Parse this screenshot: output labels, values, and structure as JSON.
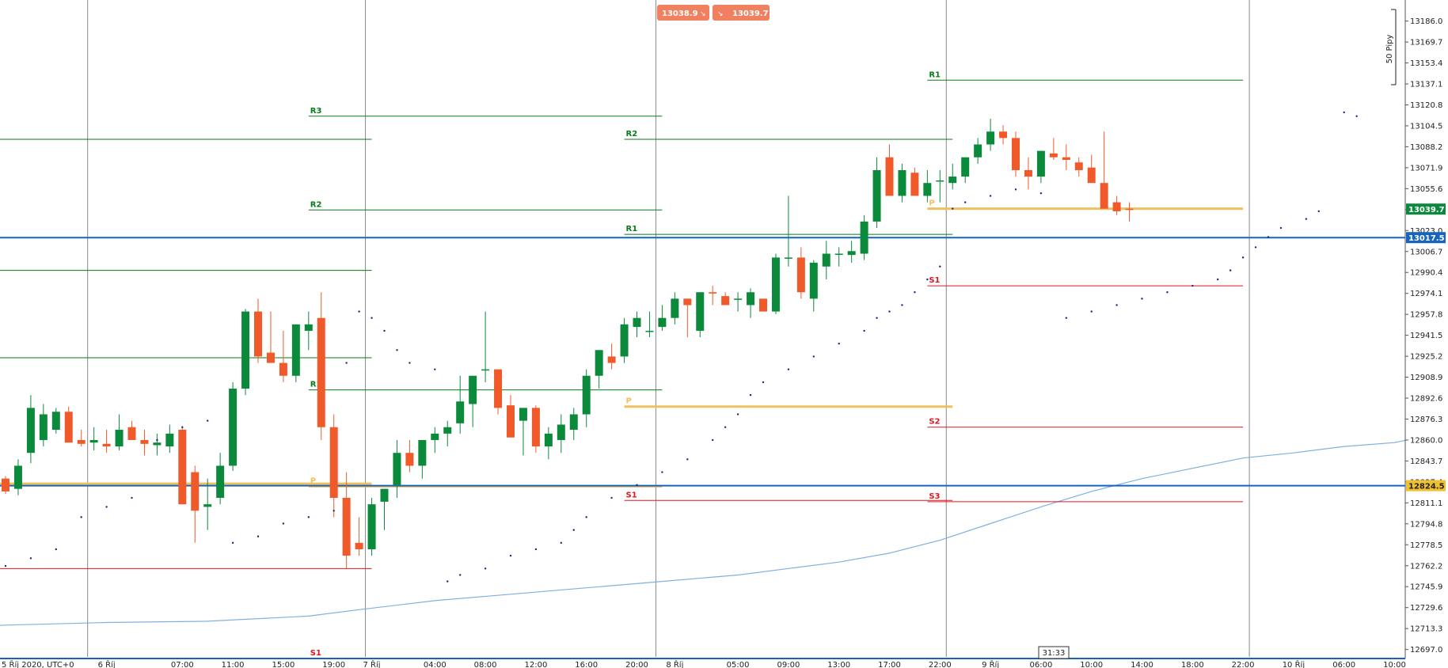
{
  "header": {
    "bid_value": "13038.9",
    "ask_value": "13039.7",
    "scale_label": "50 Pipy"
  },
  "footer": {
    "cursor_time": "31:33"
  },
  "colors": {
    "bull": "#0a8a3a",
    "bear": "#f05a2a",
    "resistance": "#0a7a1a",
    "support": "#e0161f",
    "pivot": "#f0c060",
    "sar": "#1a237e",
    "ma": "#7fb0e0",
    "hline": "#1565c0",
    "price_tag": "#0a8a3a",
    "alert_tag": "#f0c030",
    "header_tag": "#f08060",
    "separator": "#888888"
  },
  "chart_data": {
    "type": "candlestick",
    "y_axis": {
      "min": 12690,
      "max": 13195,
      "ticks": [
        "13186.0",
        "13169.7",
        "13153.4",
        "13137.1",
        "13120.8",
        "13104.5",
        "13088.2",
        "13071.9",
        "13055.6",
        "13039.3",
        "13023.0",
        "13006.7",
        "12990.4",
        "12974.1",
        "12957.8",
        "12941.5",
        "12925.2",
        "12908.9",
        "12892.6",
        "12876.3",
        "12860.0",
        "12843.7",
        "12827.4",
        "12811.1",
        "12794.8",
        "12778.5",
        "12762.2",
        "12745.9",
        "12729.6",
        "12713.3",
        "12697.0"
      ]
    },
    "x_axis": {
      "labels": [
        {
          "label": "5 Říj 2020, UTC+0",
          "bar": -1
        },
        {
          "label": "6 Říj",
          "bar": 8
        },
        {
          "label": "07:00",
          "bar": 14
        },
        {
          "label": "11:00",
          "bar": 18
        },
        {
          "label": "15:00",
          "bar": 22
        },
        {
          "label": "19:00",
          "bar": 26
        },
        {
          "label": "7 Říj",
          "bar": 29
        },
        {
          "label": "04:00",
          "bar": 34
        },
        {
          "label": "08:00",
          "bar": 38
        },
        {
          "label": "12:00",
          "bar": 42
        },
        {
          "label": "16:00",
          "bar": 46
        },
        {
          "label": "20:00",
          "bar": 50
        },
        {
          "label": "8 Říj",
          "bar": 53
        },
        {
          "label": "05:00",
          "bar": 58
        },
        {
          "label": "09:00",
          "bar": 62
        },
        {
          "label": "13:00",
          "bar": 66
        },
        {
          "label": "17:00",
          "bar": 70
        },
        {
          "label": "22:00",
          "bar": 74
        },
        {
          "label": "9 Říj",
          "bar": 78
        },
        {
          "label": "06:00",
          "bar": 82
        },
        {
          "label": "10:00",
          "bar": 86
        },
        {
          "label": "14:00",
          "bar": 90
        },
        {
          "label": "18:00",
          "bar": 94
        },
        {
          "label": "22:00",
          "bar": 98
        },
        {
          "label": "10 Říj",
          "bar": 102
        },
        {
          "label": "06:00",
          "bar": 106
        },
        {
          "label": "10:00",
          "bar": 110
        }
      ]
    },
    "day_separator_bars": [
      6.5,
      28.5,
      51.5,
      74.5,
      98.5
    ],
    "candles": [
      [
        12830,
        12832,
        12818,
        12820
      ],
      [
        12822,
        12845,
        12817,
        12840
      ],
      [
        12850,
        12895,
        12842,
        12885
      ],
      [
        12860,
        12888,
        12855,
        12880
      ],
      [
        12868,
        12885,
        12865,
        12882
      ],
      [
        12882,
        12886,
        12862,
        12858
      ],
      [
        12860,
        12868,
        12855,
        12857
      ],
      [
        12858,
        12870,
        12852,
        12860
      ],
      [
        12857,
        12868,
        12850,
        12855
      ],
      [
        12855,
        12880,
        12852,
        12868
      ],
      [
        12870,
        12875,
        12860,
        12860
      ],
      [
        12860,
        12868,
        12848,
        12857
      ],
      [
        12856,
        12865,
        12848,
        12858
      ],
      [
        12855,
        12872,
        12850,
        12865
      ],
      [
        12868,
        12870,
        12810,
        12810
      ],
      [
        12835,
        12840,
        12780,
        12805
      ],
      [
        12808,
        12830,
        12790,
        12810
      ],
      [
        12815,
        12850,
        12810,
        12840
      ],
      [
        12840,
        12905,
        12836,
        12900
      ],
      [
        12900,
        12962,
        12895,
        12960
      ],
      [
        12960,
        12970,
        12920,
        12925
      ],
      [
        12928,
        12960,
        12920,
        12920
      ],
      [
        12920,
        12945,
        12905,
        12910
      ],
      [
        12910,
        12950,
        12905,
        12950
      ],
      [
        12945,
        12960,
        12930,
        12950
      ],
      [
        12955,
        12975,
        12860,
        12870
      ],
      [
        12870,
        12880,
        12800,
        12815
      ],
      [
        12815,
        12835,
        12760,
        12770
      ],
      [
        12780,
        12800,
        12770,
        12775
      ],
      [
        12775,
        12815,
        12770,
        12810
      ],
      [
        12812,
        12822,
        12790,
        12822
      ],
      [
        12825,
        12860,
        12815,
        12850
      ],
      [
        12850,
        12860,
        12835,
        12840
      ],
      [
        12840,
        12860,
        12830,
        12860
      ],
      [
        12860,
        12870,
        12850,
        12865
      ],
      [
        12865,
        12875,
        12855,
        12870
      ],
      [
        12873,
        12910,
        12865,
        12890
      ],
      [
        12888,
        12910,
        12870,
        12910
      ],
      [
        12915,
        12960,
        12905,
        12915
      ],
      [
        12915,
        12915,
        12880,
        12885
      ],
      [
        12887,
        12895,
        12862,
        12862
      ],
      [
        12875,
        12885,
        12848,
        12885
      ],
      [
        12885,
        12887,
        12850,
        12855
      ],
      [
        12855,
        12870,
        12845,
        12865
      ],
      [
        12860,
        12880,
        12850,
        12872
      ],
      [
        12868,
        12885,
        12860,
        12880
      ],
      [
        12880,
        12915,
        12870,
        12910
      ],
      [
        12910,
        12930,
        12900,
        12930
      ],
      [
        12925,
        12935,
        12915,
        12920
      ],
      [
        12925,
        12955,
        12920,
        12950
      ],
      [
        12948,
        12960,
        12940,
        12955
      ],
      [
        12945,
        12960,
        12940,
        12945
      ],
      [
        12948,
        12965,
        12945,
        12955
      ],
      [
        12955,
        12975,
        12950,
        12970
      ],
      [
        12970,
        12970,
        12940,
        12965
      ],
      [
        12945,
        12975,
        12940,
        12975
      ],
      [
        12975,
        12980,
        12965,
        12974
      ],
      [
        12972,
        12975,
        12965,
        12965
      ],
      [
        12970,
        12975,
        12960,
        12970
      ],
      [
        12965,
        12978,
        12955,
        12975
      ],
      [
        12970,
        12970,
        12960,
        12960
      ],
      [
        12960,
        13005,
        12958,
        13002
      ],
      [
        13002,
        13050,
        12995,
        13002
      ],
      [
        13002,
        13010,
        12970,
        12975
      ],
      [
        12970,
        13000,
        12960,
        12998
      ],
      [
        12995,
        13015,
        12985,
        13005
      ],
      [
        13005,
        13010,
        12995,
        13005
      ],
      [
        13004,
        13015,
        12998,
        13007
      ],
      [
        13005,
        13035,
        13000,
        13030
      ],
      [
        13030,
        13080,
        13025,
        13070
      ],
      [
        13080,
        13090,
        13050,
        13050
      ],
      [
        13050,
        13075,
        13045,
        13070
      ],
      [
        13068,
        13072,
        13050,
        13050
      ],
      [
        13050,
        13070,
        13045,
        13060
      ],
      [
        13062,
        13070,
        13045,
        13062
      ],
      [
        13060,
        13075,
        13055,
        13065
      ],
      [
        13065,
        13078,
        13060,
        13080
      ],
      [
        13080,
        13095,
        13075,
        13090
      ],
      [
        13090,
        13110,
        13085,
        13100
      ],
      [
        13100,
        13105,
        13090,
        13095
      ],
      [
        13095,
        13100,
        13065,
        13070
      ],
      [
        13070,
        13080,
        13055,
        13065
      ],
      [
        13065,
        13085,
        13060,
        13085
      ],
      [
        13083,
        13095,
        13078,
        13080
      ],
      [
        13080,
        13090,
        13070,
        13078
      ],
      [
        13076,
        13080,
        13065,
        13070
      ],
      [
        13072,
        13082,
        13060,
        13060
      ],
      [
        13060,
        13100,
        13040,
        13040
      ],
      [
        13045,
        13050,
        13035,
        13038
      ],
      [
        13040,
        13045,
        13030,
        13039
      ]
    ],
    "sar": [
      [
        -2,
        12758
      ],
      [
        0,
        12762
      ],
      [
        2,
        12768
      ],
      [
        4,
        12775
      ],
      [
        6,
        12800
      ],
      [
        8,
        12808
      ],
      [
        10,
        12815
      ],
      [
        12,
        12860
      ],
      [
        14,
        12870
      ],
      [
        16,
        12875
      ],
      [
        18,
        12780
      ],
      [
        20,
        12785
      ],
      [
        22,
        12795
      ],
      [
        24,
        12800
      ],
      [
        26,
        12805
      ],
      [
        27,
        12920
      ],
      [
        28,
        12960
      ],
      [
        29,
        12955
      ],
      [
        30,
        12945
      ],
      [
        31,
        12930
      ],
      [
        32,
        12920
      ],
      [
        34,
        12915
      ],
      [
        35,
        12750
      ],
      [
        36,
        12755
      ],
      [
        38,
        12760
      ],
      [
        40,
        12770
      ],
      [
        42,
        12775
      ],
      [
        44,
        12780
      ],
      [
        45,
        12790
      ],
      [
        46,
        12800
      ],
      [
        48,
        12815
      ],
      [
        50,
        12825
      ],
      [
        52,
        12835
      ],
      [
        54,
        12845
      ],
      [
        56,
        12860
      ],
      [
        57,
        12870
      ],
      [
        58,
        12880
      ],
      [
        59,
        12895
      ],
      [
        60,
        12905
      ],
      [
        62,
        12915
      ],
      [
        64,
        12925
      ],
      [
        66,
        12935
      ],
      [
        68,
        12945
      ],
      [
        69,
        12955
      ],
      [
        70,
        12960
      ],
      [
        71,
        12965
      ],
      [
        72,
        12975
      ],
      [
        73,
        12985
      ],
      [
        74,
        12995
      ],
      [
        75,
        13040
      ],
      [
        76,
        13045
      ],
      [
        78,
        13050
      ],
      [
        80,
        13055
      ],
      [
        82,
        13052
      ],
      [
        84,
        12955
      ],
      [
        86,
        12960
      ],
      [
        88,
        12965
      ],
      [
        90,
        12970
      ],
      [
        92,
        12975
      ],
      [
        94,
        12980
      ],
      [
        96,
        12985
      ],
      [
        97,
        12992
      ],
      [
        98,
        13002
      ],
      [
        99,
        13010
      ],
      [
        100,
        13018
      ],
      [
        101,
        13025
      ],
      [
        103,
        13032
      ],
      [
        104,
        13038
      ],
      [
        106,
        13115
      ],
      [
        107,
        13112
      ]
    ],
    "moving_average": [
      [
        -7,
        12712
      ],
      [
        0,
        12716
      ],
      [
        8,
        12718
      ],
      [
        16,
        12719
      ],
      [
        24,
        12723
      ],
      [
        28,
        12728
      ],
      [
        34,
        12735
      ],
      [
        40,
        12740
      ],
      [
        46,
        12745
      ],
      [
        52,
        12750
      ],
      [
        58,
        12755
      ],
      [
        62,
        12760
      ],
      [
        66,
        12765
      ],
      [
        70,
        12772
      ],
      [
        74,
        12782
      ],
      [
        78,
        12795
      ],
      [
        82,
        12808
      ],
      [
        86,
        12820
      ],
      [
        90,
        12830
      ],
      [
        94,
        12838
      ],
      [
        98,
        12846
      ],
      [
        102,
        12850
      ],
      [
        106,
        12855
      ],
      [
        110,
        12858
      ],
      [
        112,
        12862
      ],
      [
        118,
        12864
      ],
      [
        120,
        12868
      ],
      [
        123,
        12872
      ],
      [
        126,
        12876
      ],
      [
        130,
        12880
      ]
    ],
    "horizontal_lines": [
      13017.5,
      12824.5
    ],
    "pivot_levels": [
      {
        "label": "R3",
        "bars": [
          -6,
          29
        ],
        "value": 13094
      },
      {
        "label": "R2",
        "bars": [
          -6,
          29
        ],
        "value": 12992
      },
      {
        "label": "R1",
        "bars": [
          -6,
          29
        ],
        "value": 12924
      },
      {
        "label": "P",
        "bars": [
          -6,
          29
        ],
        "value": 12826
      },
      {
        "label": "S1",
        "bars": [
          -6,
          29
        ],
        "value": 12760
      },
      {
        "label": "R3",
        "bars": [
          24,
          52
        ],
        "value": 13112
      },
      {
        "label": "R2",
        "bars": [
          24,
          52
        ],
        "value": 13039
      },
      {
        "label": "R1",
        "bars": [
          24,
          52
        ],
        "value": 12899
      },
      {
        "label": "P",
        "bars": [
          24,
          52
        ],
        "value": 12824
      },
      {
        "label": "S1",
        "bars": [
          24,
          52
        ],
        "value": 12690
      },
      {
        "label": "R2",
        "bars": [
          49,
          75
        ],
        "value": 13094
      },
      {
        "label": "R1",
        "bars": [
          49,
          75
        ],
        "value": 13020
      },
      {
        "label": "P",
        "bars": [
          49,
          75
        ],
        "value": 12886
      },
      {
        "label": "S1",
        "bars": [
          49,
          75
        ],
        "value": 12813
      },
      {
        "label": "R1",
        "bars": [
          73,
          98
        ],
        "value": 13140
      },
      {
        "label": "P",
        "bars": [
          73,
          98
        ],
        "value": 13040
      },
      {
        "label": "S1",
        "bars": [
          73,
          98
        ],
        "value": 12980
      },
      {
        "label": "S2",
        "bars": [
          73,
          98
        ],
        "value": 12870
      },
      {
        "label": "S3",
        "bars": [
          73,
          98
        ],
        "value": 12812
      }
    ],
    "price_tags": [
      {
        "value": "13039.7",
        "y": 13039.7,
        "kind": "price"
      },
      {
        "value": "13017.5",
        "y": 13017.5,
        "kind": "line"
      },
      {
        "value": "12824.5",
        "y": 12824.5,
        "kind": "alert"
      }
    ]
  }
}
